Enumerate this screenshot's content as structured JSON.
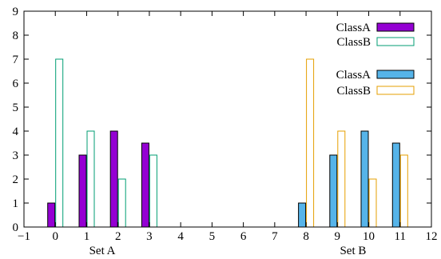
{
  "chart_data": {
    "type": "bar",
    "xlim": [
      -1,
      12
    ],
    "ylim": [
      0,
      9
    ],
    "x_ticks": [
      "−1",
      "0",
      "1",
      "2",
      "3",
      "4",
      "5",
      "6",
      "7",
      "8",
      "9",
      "10",
      "11",
      "12"
    ],
    "y_ticks": [
      "0",
      "1",
      "2",
      "3",
      "4",
      "5",
      "6",
      "7",
      "8",
      "9"
    ],
    "group_labels": [
      {
        "label": "Set A",
        "x": 1.5
      },
      {
        "label": "Set B",
        "x": 9.5
      }
    ],
    "groups": [
      {
        "name": "Set A",
        "x": [
          0,
          1,
          2,
          3
        ],
        "series": [
          {
            "name": "ClassA",
            "values": [
              1,
              3,
              4,
              3.5
            ],
            "fill": "#9400d3",
            "stroke": "#000000",
            "filled": true
          },
          {
            "name": "ClassB",
            "values": [
              7,
              4,
              2,
              3
            ],
            "fill": "none",
            "stroke": "#009e73",
            "filled": false
          }
        ]
      },
      {
        "name": "Set B",
        "x": [
          8,
          9,
          10,
          11
        ],
        "series": [
          {
            "name": "ClassA",
            "values": [
              1,
              3,
              4,
              3.5
            ],
            "fill": "#56b4e9",
            "stroke": "#000000",
            "filled": true
          },
          {
            "name": "ClassB",
            "values": [
              7,
              4,
              2,
              3
            ],
            "fill": "none",
            "stroke": "#e69f00",
            "filled": false
          }
        ]
      }
    ],
    "legend": [
      {
        "label": "ClassA",
        "fill": "#9400d3",
        "stroke": "#000000",
        "filled": true
      },
      {
        "label": "ClassB",
        "fill": "none",
        "stroke": "#009e73",
        "filled": false
      },
      {
        "label": "ClassA",
        "fill": "#56b4e9",
        "stroke": "#000000",
        "filled": true
      },
      {
        "label": "ClassB",
        "fill": "none",
        "stroke": "#e69f00",
        "filled": false
      }
    ],
    "legend_position": "top-right",
    "grid": false
  }
}
